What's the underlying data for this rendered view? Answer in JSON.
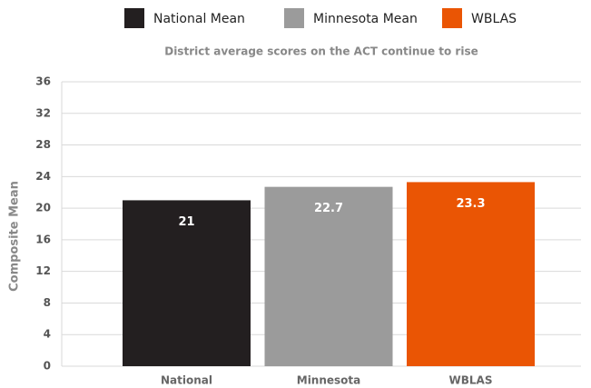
{
  "chart_data": {
    "type": "bar",
    "legend": [
      "National Mean",
      "Minnesota Mean",
      "WBLAS"
    ],
    "subtitle": "District average scores on the ACT continue to rise",
    "y_label": "Composite Mean",
    "categories": [
      "National",
      "Minnesota",
      "WBLAS"
    ],
    "values": [
      21,
      22.7,
      23.3
    ],
    "colors": [
      "#231f20",
      "#9b9b9b",
      "#ea5504"
    ],
    "ylim": [
      0,
      36
    ],
    "yticks": [
      0,
      4,
      8,
      12,
      16,
      20,
      24,
      28,
      32,
      36
    ],
    "grid": true
  }
}
